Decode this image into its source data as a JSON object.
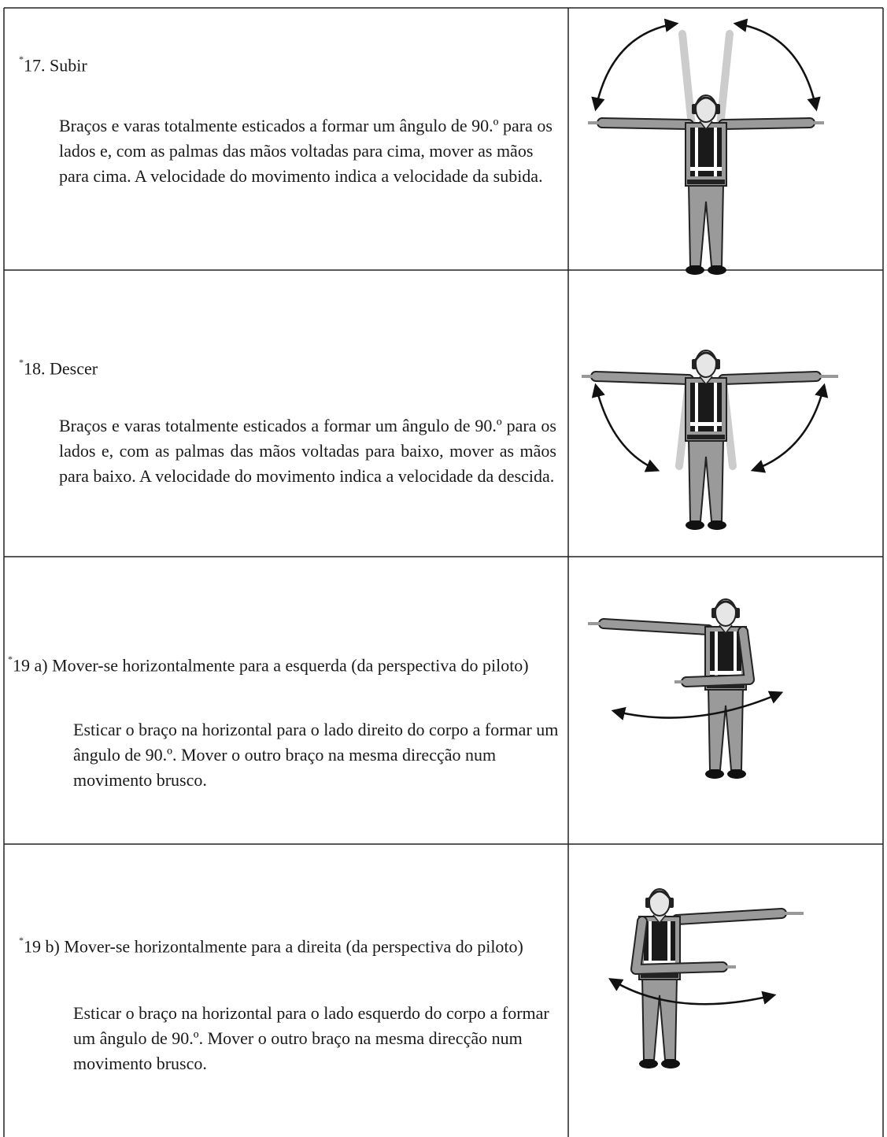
{
  "rows": [
    {
      "marker": "*",
      "label": "17. Subir",
      "description": "Braços e varas totalmente esticados a formar um ângulo de 90.º para os lados e, com as palmas das mãos voltadas para cima, mover as mãos para cima. A velocidade do movimento indica a velocidade da subida."
    },
    {
      "marker": "*",
      "label": "18. Descer",
      "description": "Braços e varas totalmente esticados a formar um ângulo de 90.º para os lados e, com as palmas das mãos voltadas para baixo, mover as mãos para baixo. A velocidade do movimento indica a velocidade da descida."
    },
    {
      "marker": "*",
      "label": "19 a) Mover-se horizontalmente para a esquerda (da perspectiva do piloto)",
      "description": "Esticar o braço na horizontal para o lado direito do corpo a formar um ângulo de 90.º. Mover o outro braço na mesma direcção num movimento brusco."
    },
    {
      "marker": "*",
      "label": "19 b) Mover-se horizontalmente para a direita (da perspectiva do piloto)",
      "description": "Esticar o braço na horizontal para o lado esquerdo do corpo a formar um ângulo de 90.º. Mover o outro braço na mesma direcção num movimento brusco."
    }
  ]
}
